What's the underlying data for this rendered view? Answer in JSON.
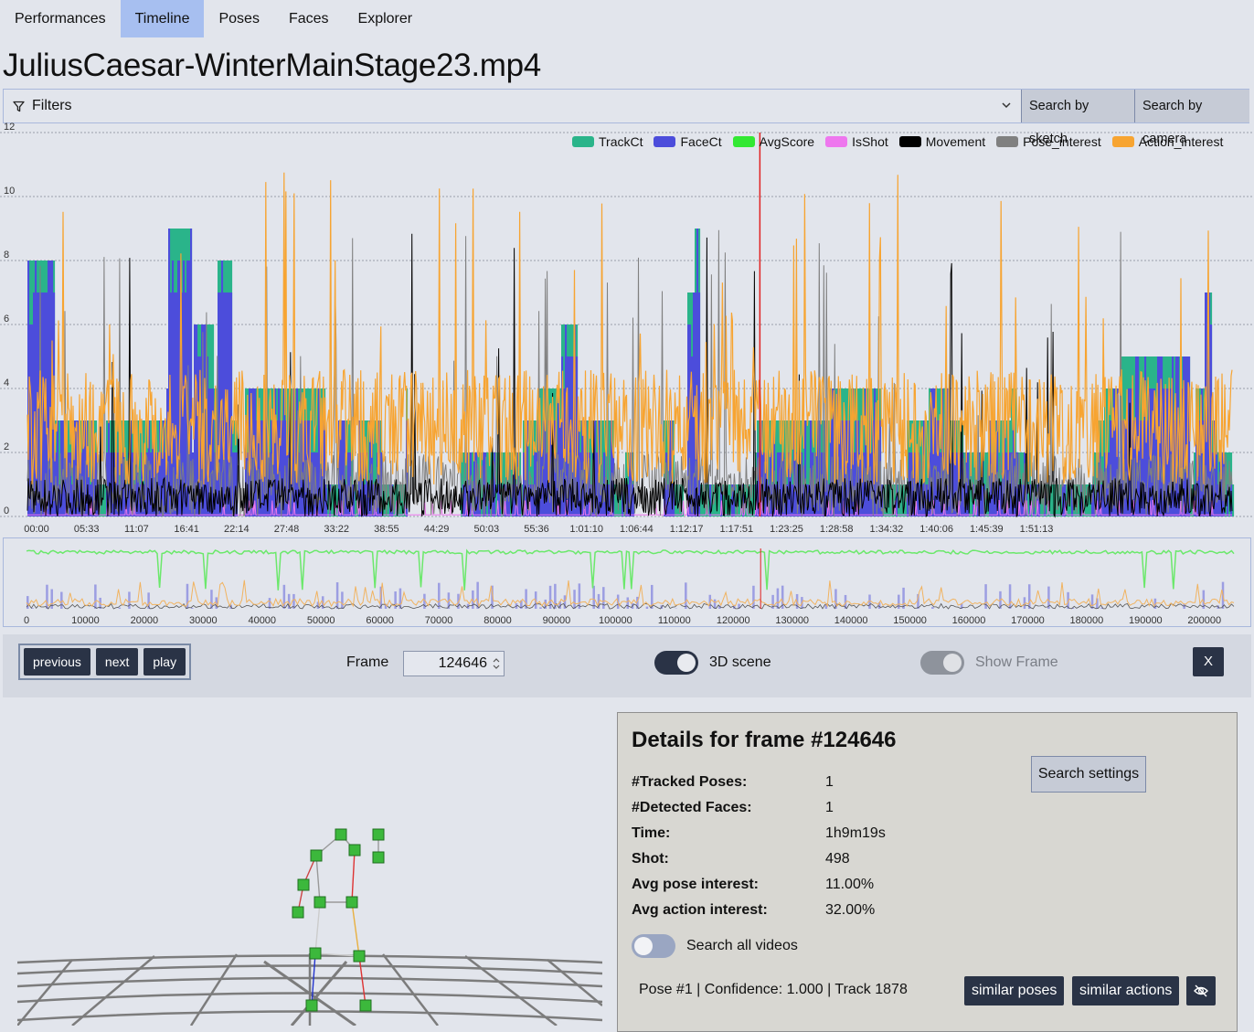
{
  "nav": {
    "tabs": [
      {
        "label": "Performances",
        "active": false
      },
      {
        "label": "Timeline",
        "active": true
      },
      {
        "label": "Poses",
        "active": false
      },
      {
        "label": "Faces",
        "active": false
      },
      {
        "label": "Explorer",
        "active": false
      }
    ]
  },
  "page_title": "JuliusCaesar-WinterMainStage23.mp4",
  "filters": {
    "label": "Filters",
    "icon": "funnel-icon",
    "search_by_sketch": "Search by sketch",
    "search_by_camera": "Search by camera"
  },
  "legend": {
    "items": [
      {
        "name": "TrackCt",
        "color": "#2ab48a"
      },
      {
        "name": "FaceCt",
        "color": "#4c4ddb"
      },
      {
        "name": "AvgScore",
        "color": "#33e833"
      },
      {
        "name": "IsShot",
        "color": "#ee77ee"
      },
      {
        "name": "Movement",
        "color": "#000000"
      },
      {
        "name": "Pose_interest",
        "color": "#808080"
      },
      {
        "name": "Action_interest",
        "color": "#f7a431"
      }
    ]
  },
  "chart_data": [
    {
      "type": "area",
      "y_ticks": [
        "0",
        "2",
        "4",
        "6",
        "8",
        "10",
        "12"
      ],
      "ylim": [
        0,
        12
      ],
      "x_tick_labels": [
        "00:00",
        "05:33",
        "11:07",
        "16:41",
        "22:14",
        "27:48",
        "33:22",
        "38:55",
        "44:29",
        "50:03",
        "55:36",
        "1:01:10",
        "1:06:44",
        "1:12:17",
        "1:17:51",
        "1:23:25",
        "1:28:58",
        "1:34:32",
        "1:40:06",
        "1:45:39",
        "1:51:13"
      ],
      "grid": true,
      "legend_position": "top-right",
      "current_frame_marker": 124646,
      "series": [
        {
          "name": "TrackCt",
          "color": "#2ab48a",
          "typical_range": [
            0,
            10
          ]
        },
        {
          "name": "FaceCt",
          "color": "#4c4ddb",
          "typical_range": [
            0,
            7
          ]
        },
        {
          "name": "AvgScore",
          "color": "#33e833"
        },
        {
          "name": "IsShot",
          "color": "#ee77ee",
          "typical_range": [
            0,
            1
          ]
        },
        {
          "name": "Movement",
          "color": "#000000",
          "typical_range": [
            0,
            2
          ]
        },
        {
          "name": "Pose_interest",
          "color": "#808080",
          "typical_range": [
            0,
            10
          ]
        },
        {
          "name": "Action_interest",
          "color": "#f7a431",
          "typical_range": [
            0,
            12
          ]
        }
      ]
    },
    {
      "type": "area",
      "x_tick_labels": [
        "0",
        "10000",
        "20000",
        "30000",
        "40000",
        "50000",
        "60000",
        "70000",
        "80000",
        "90000",
        "100000",
        "110000",
        "120000",
        "130000",
        "140000",
        "150000",
        "160000",
        "170000",
        "180000",
        "190000",
        "200000"
      ],
      "xlim": [
        0,
        205000
      ],
      "current_frame_marker": 124646
    }
  ],
  "controls": {
    "previous": "previous",
    "next": "next",
    "play": "play",
    "frame_label": "Frame",
    "frame_value": "124646",
    "scene_toggle_label": "3D scene",
    "scene_toggle_on": true,
    "show_frame_label": "Show Frame",
    "show_frame_on": true,
    "close": "X"
  },
  "details": {
    "heading": "Details for frame #124646",
    "search_settings": "Search settings",
    "rows": [
      {
        "key": "#Tracked Poses:",
        "value": "1"
      },
      {
        "key": "#Detected Faces:",
        "value": "1"
      },
      {
        "key": "Time:",
        "value": "1h9m19s"
      },
      {
        "key": "Shot:",
        "value": "498"
      },
      {
        "key": "Avg pose interest:",
        "value": "11.00%"
      },
      {
        "key": "Avg action interest:",
        "value": "32.00%"
      }
    ],
    "search_all_videos": "Search all videos",
    "search_all_on": false,
    "pose_info": "Pose #1 | Confidence: 1.000 | Track 1878",
    "similar_poses": "similar poses",
    "similar_actions": "similar actions",
    "hide_icon": "eye-slash-icon"
  },
  "colors": {
    "accent": "#a7bff0",
    "dark_button": "#2a3346",
    "marker": "#e02020"
  }
}
